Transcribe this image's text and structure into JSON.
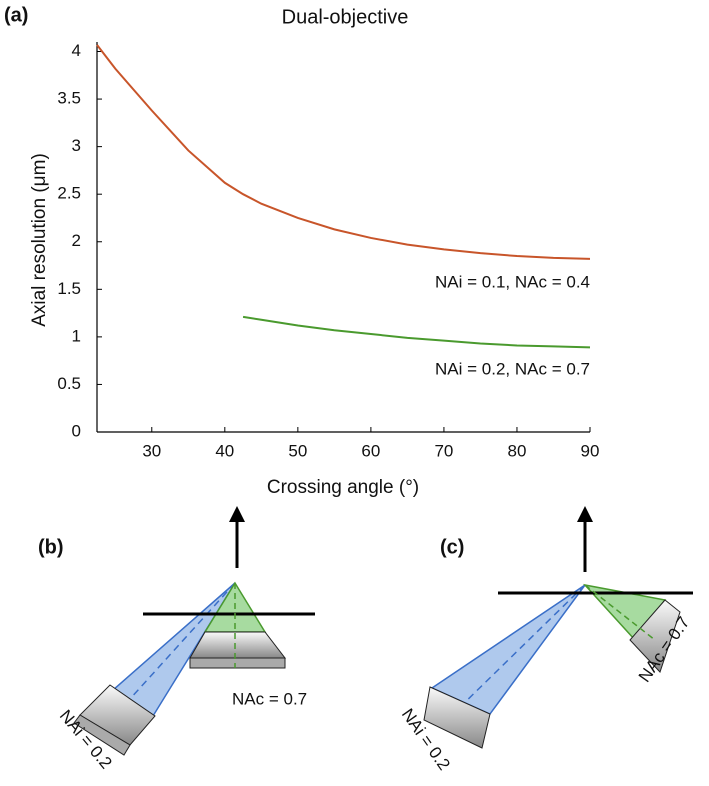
{
  "chart_data": {
    "type": "line",
    "panel_label": "(a)",
    "title": "Dual-objective",
    "x_label": "Crossing angle (°)",
    "y_label": "Axial resolution (μm)",
    "x": [
      22.5,
      25,
      30,
      35,
      40,
      42.5,
      45,
      50,
      55,
      60,
      65,
      70,
      75,
      80,
      85,
      90
    ],
    "series": [
      {
        "color": "#c8552a",
        "values": [
          4.07,
          3.82,
          3.38,
          2.96,
          2.62,
          2.5,
          2.4,
          2.25,
          2.13,
          2.04,
          1.97,
          1.92,
          1.88,
          1.85,
          1.83,
          1.82
        ]
      },
      {
        "color": "#4a9a2e",
        "values": [
          null,
          null,
          null,
          null,
          null,
          1.21,
          1.18,
          1.12,
          1.07,
          1.03,
          0.99,
          0.96,
          0.93,
          0.91,
          0.9,
          0.89
        ]
      }
    ],
    "annotations": [
      "NAi = 0.1, NAc = 0.4",
      "NAi = 0.2, NAc = 0.7"
    ],
    "xlim": [
      22.5,
      90
    ],
    "ylim": [
      0,
      4.1
    ],
    "xticks": [
      30,
      40,
      50,
      60,
      70,
      80,
      90
    ],
    "yticks": [
      0,
      0.5,
      1,
      1.5,
      2,
      2.5,
      3,
      3.5,
      4
    ]
  },
  "panels": [
    {
      "label": "(b)",
      "nac": "NAc = 0.7",
      "nai": "NAi = 0.2"
    },
    {
      "label": "(c)",
      "nac": "NAc = 0.7",
      "nai": "NAi = 0.2"
    }
  ]
}
